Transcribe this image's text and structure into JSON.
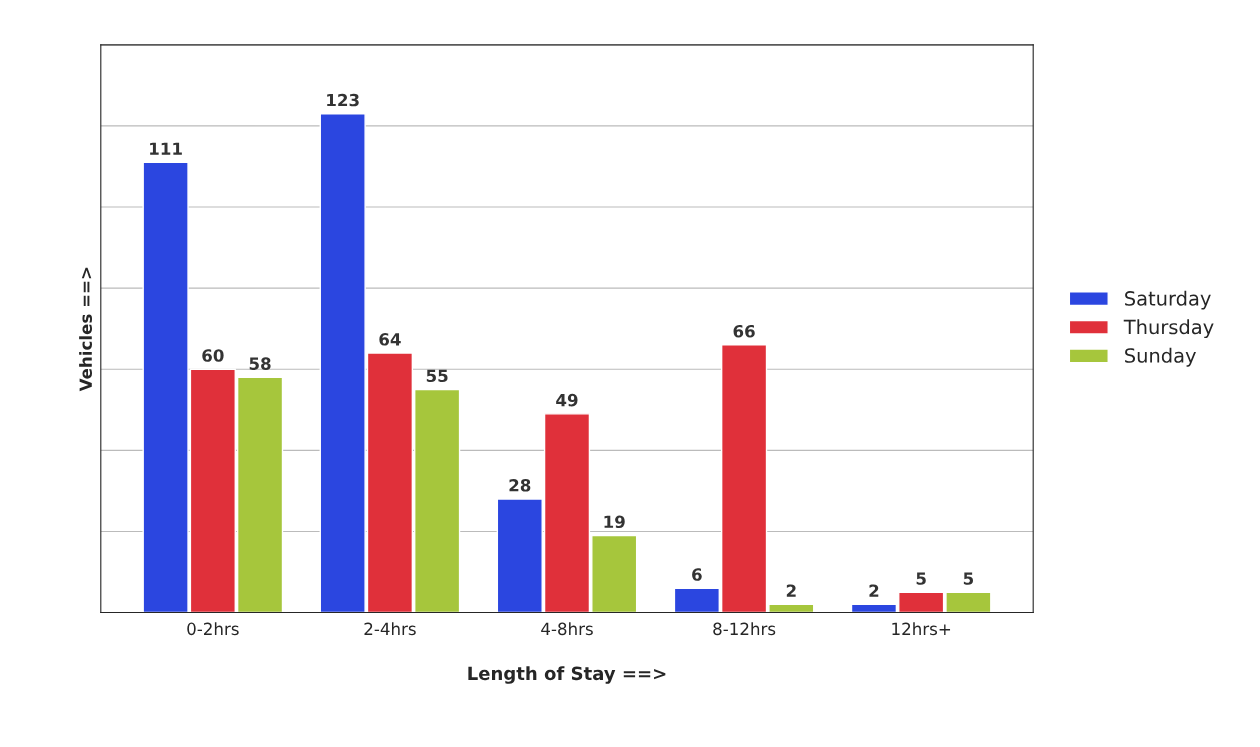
{
  "chart_data": {
    "type": "bar",
    "xlabel": "Length of Stay ==>",
    "ylabel": "Vehicles ==>",
    "categories": [
      "0-2hrs",
      "2-4hrs",
      "4-8hrs",
      "8-12hrs",
      "12hrs+"
    ],
    "series": [
      {
        "name": "Saturday",
        "color": "#2b46e0",
        "values": [
          111,
          123,
          28,
          6,
          2
        ]
      },
      {
        "name": "Thursday",
        "color": "#e0303a",
        "values": [
          60,
          64,
          49,
          66,
          5
        ]
      },
      {
        "name": "Sunday",
        "color": "#a6c63c",
        "values": [
          58,
          55,
          19,
          2,
          5
        ]
      }
    ],
    "ylim": [
      0,
      140
    ],
    "yticks": [
      {
        "value": 0,
        "label": null
      },
      {
        "value": 20,
        "label": null
      },
      {
        "value": 40,
        "label": null
      },
      {
        "value": 60,
        "label": null
      },
      {
        "value": 80,
        "label": null
      },
      {
        "value": 100,
        "label": null
      },
      {
        "value": 120,
        "label": null
      },
      {
        "value": 140,
        "label": null
      }
    ],
    "tick_labels": "x",
    "grid": "y",
    "legend": "right",
    "data_labels": true
  }
}
